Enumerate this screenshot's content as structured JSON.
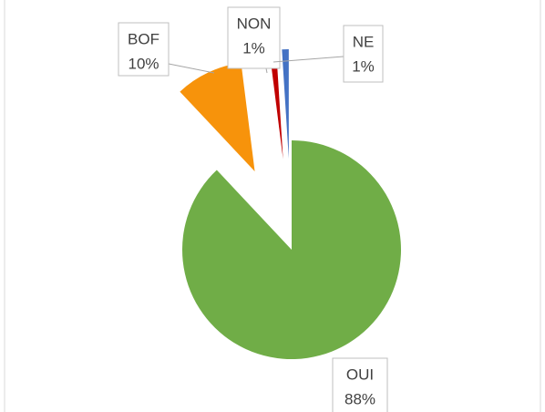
{
  "chart_data": {
    "type": "pie",
    "categories": [
      "OUI",
      "BOF",
      "NON",
      "NE"
    ],
    "values": [
      88,
      10,
      1,
      1
    ],
    "value_labels": [
      "88%",
      "10%",
      "1%",
      "1%"
    ],
    "colors": [
      "#70ad47",
      "#f7930b",
      "#c00000",
      "#4472c4"
    ]
  }
}
